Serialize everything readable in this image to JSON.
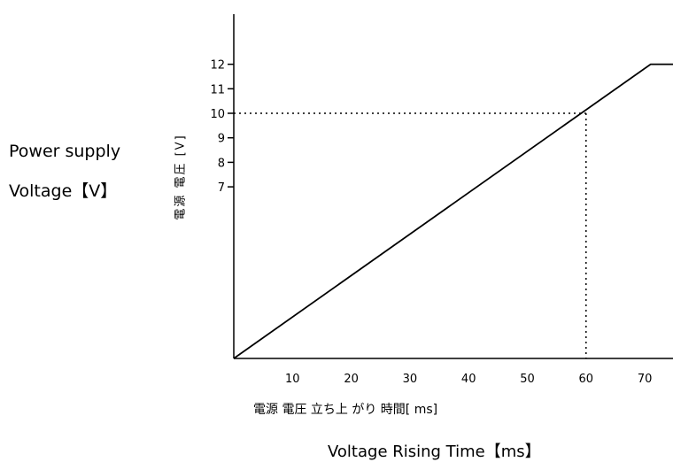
{
  "chart_data": {
    "type": "line",
    "ylabel_en_line1": "Power supply",
    "ylabel_en_line2": "Voltage【V】",
    "ylabel_jp": "電源 電圧 [V]",
    "xlabel_jp": "電源 電圧 立ち上 がり 時間[ ms]",
    "xlabel_en": "Voltage Rising Time【ms】",
    "x_ticks": [
      "10",
      "20",
      "30",
      "40",
      "50",
      "60",
      "70"
    ],
    "y_ticks": [
      "7",
      "8",
      "9",
      "10",
      "11",
      "12"
    ],
    "xlim": [
      0,
      80
    ],
    "ylim": [
      0,
      14
    ],
    "grid": false,
    "series": [
      {
        "x": [
          0,
          71,
          80
        ],
        "y": [
          0,
          12,
          12
        ]
      }
    ],
    "reference_point": {
      "x": 60,
      "y": 10
    }
  }
}
